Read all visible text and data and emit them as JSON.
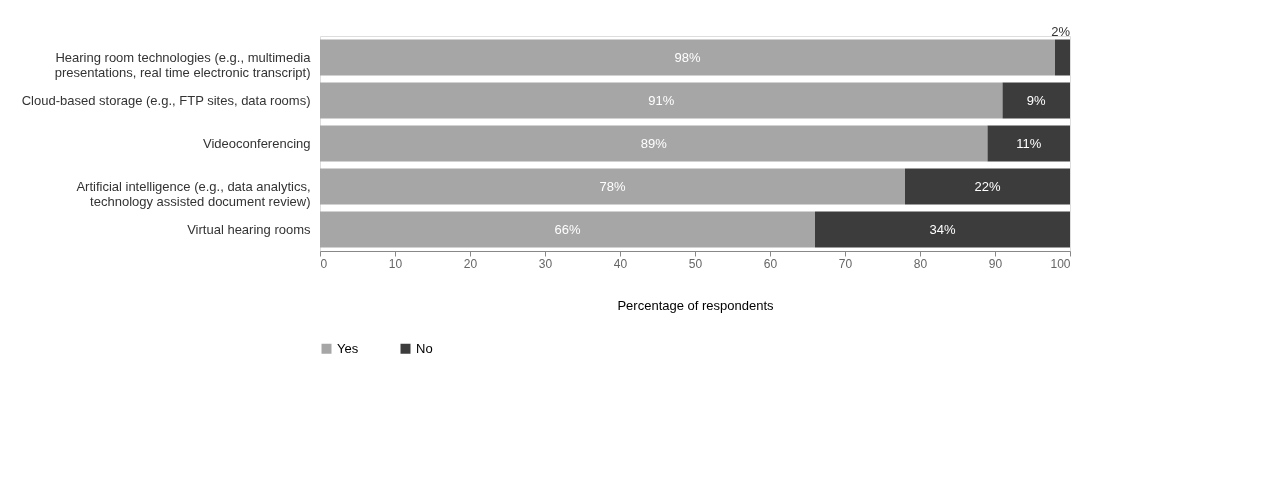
{
  "chart_data": {
    "type": "bar",
    "orientation": "horizontal",
    "stacked": true,
    "categories": [
      "Hearing room technologies (e.g., multimedia\npresentations, real time electronic transcript)",
      "Cloud-based storage (e.g., FTP sites, data rooms)",
      "Videoconferencing",
      "Artificial intelligence (e.g., data analytics,\ntechnology assisted document review)",
      "Virtual hearing rooms"
    ],
    "series": [
      {
        "name": "Yes",
        "color": "#a6a6a6",
        "values": [
          98,
          91,
          89,
          78,
          66
        ],
        "value_labels": [
          "98%",
          "91%",
          "89%",
          "78%",
          "66%"
        ]
      },
      {
        "name": "No",
        "color": "#3c3c3c",
        "values": [
          2,
          9,
          11,
          22,
          34
        ],
        "value_labels": [
          "2%",
          "9%",
          "11%",
          "22%",
          "34%"
        ]
      }
    ],
    "xlim": [
      0,
      100
    ],
    "xticks": [
      0,
      10,
      20,
      30,
      40,
      50,
      60,
      70,
      80,
      90,
      100
    ],
    "xlabel": "Percentage of respondents",
    "grid": false,
    "legend": "bottom"
  }
}
